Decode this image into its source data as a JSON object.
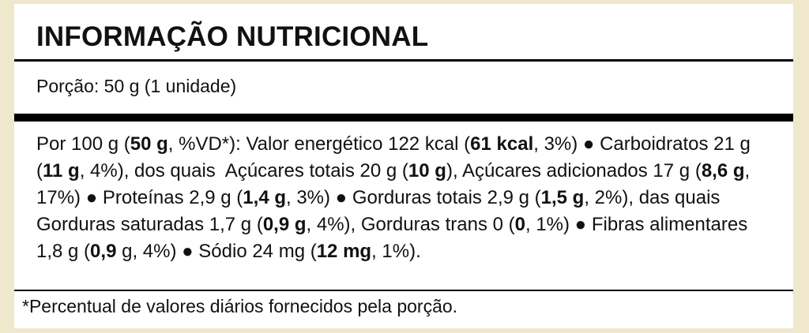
{
  "title": "INFORMAÇÃO NUTRICIONAL",
  "portion": "Porção: 50 g (1 unidade)",
  "body": [
    {
      "text": "Por 100 g (",
      "bold": false
    },
    {
      "text": "50 g",
      "bold": true
    },
    {
      "text": ", %VD*): Valor energético 122 kcal (",
      "bold": false
    },
    {
      "text": "61 kcal",
      "bold": true
    },
    {
      "text": ", 3%) ● Carboidratos 21 g (",
      "bold": false
    },
    {
      "text": "11 g",
      "bold": true
    },
    {
      "text": ", 4%), dos quais  Açúcares totais 20 g (",
      "bold": false
    },
    {
      "text": "10 g",
      "bold": true
    },
    {
      "text": "), Açúcares adicionados 17 g (",
      "bold": false
    },
    {
      "text": "8,6 g",
      "bold": true
    },
    {
      "text": ", 17%) ● Proteínas 2,9 g (",
      "bold": false
    },
    {
      "text": "1,4 g",
      "bold": true
    },
    {
      "text": ", 3%) ● Gorduras totais 2,9 g (",
      "bold": false
    },
    {
      "text": "1,5 g",
      "bold": true
    },
    {
      "text": ", 2%), das quais  Gorduras saturadas 1,7 g (",
      "bold": false
    },
    {
      "text": "0,9 g",
      "bold": true
    },
    {
      "text": ", 4%), Gorduras trans 0 (",
      "bold": false
    },
    {
      "text": "0",
      "bold": true
    },
    {
      "text": ", 1%) ● Fibras alimentares 1,8 g (",
      "bold": false
    },
    {
      "text": "0,9",
      "bold": true
    },
    {
      "text": " g, 4%) ● Sódio 24 mg (",
      "bold": false
    },
    {
      "text": "12 mg",
      "bold": true
    },
    {
      "text": ", 1%).",
      "bold": false
    }
  ],
  "footnote": "*Percentual de valores diários fornecidos pela porção."
}
